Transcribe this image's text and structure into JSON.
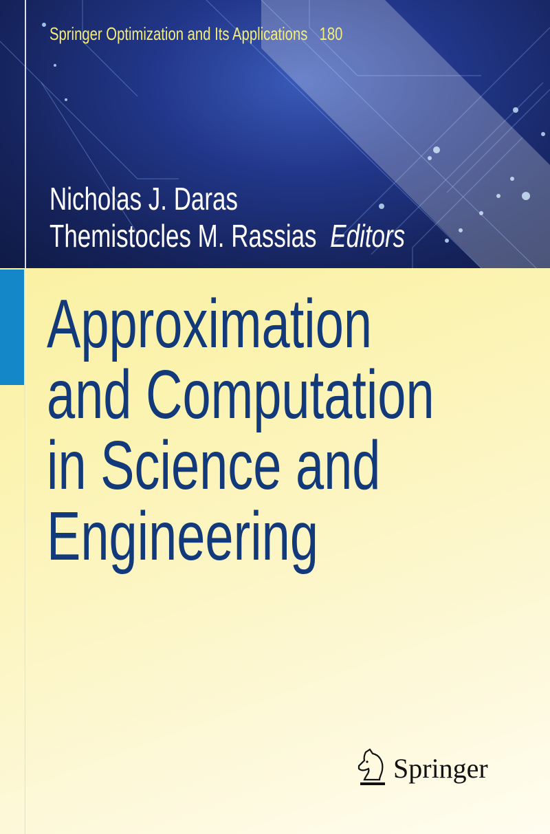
{
  "series": {
    "name": "Springer Optimization and Its Applications",
    "volume": "180"
  },
  "authors": [
    "Nicholas J. Daras",
    "Themistocles M. Rassias"
  ],
  "editors_label": "Editors",
  "title_lines": [
    "Approximation",
    "and Computation",
    "in Science and",
    "Engineering"
  ],
  "publisher": {
    "name": "Springer",
    "logo_icon": "knight-chess-horse-icon"
  },
  "colors": {
    "series_text": "#f5ee7a",
    "title_text": "#123a7a",
    "accent_bar": "#1487c9",
    "top_background": "#1c2e72"
  }
}
